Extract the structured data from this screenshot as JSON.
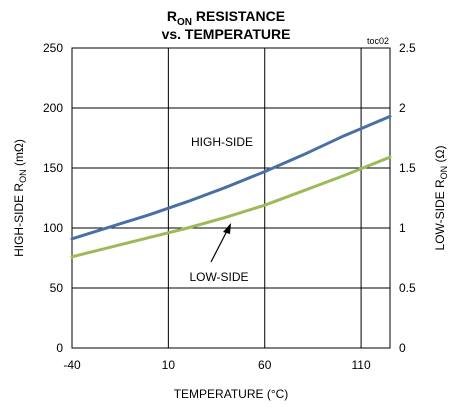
{
  "chart_data": {
    "type": "line",
    "title": {
      "line1_main": "R",
      "line1_sub": "ON",
      "line1_rest": " RESISTANCE",
      "line2": "vs. TEMPERATURE"
    },
    "tag": "toc02",
    "xlabel": "TEMPERATURE (°C)",
    "ylabel_left": {
      "pre": "HIGH-SIDE R",
      "sub": "ON",
      "post": " (mΩ)"
    },
    "ylabel_right": {
      "pre": "LOW-SIDE R",
      "sub": "ON",
      "post": " (Ω)"
    },
    "xlim": [
      -40,
      125
    ],
    "ylim_left": [
      0,
      250
    ],
    "ylim_right": [
      0,
      2.5
    ],
    "x_ticks": [
      "-40",
      "10",
      "60",
      "110"
    ],
    "y_ticks_left": [
      "0",
      "50",
      "100",
      "150",
      "200",
      "250"
    ],
    "y_ticks_right": [
      "0",
      "0.5",
      "1",
      "1.5",
      "2",
      "2.5"
    ],
    "grid": true,
    "series": [
      {
        "name": "HIGH-SIDE",
        "axis": "left",
        "color": "#4a6fa5",
        "x": [
          -40,
          -20,
          0,
          20,
          40,
          60,
          80,
          100,
          125
        ],
        "y": [
          91,
          101,
          111,
          122,
          134,
          147,
          161,
          176,
          193
        ]
      },
      {
        "name": "LOW-SIDE",
        "axis": "right",
        "color": "#9bbb59",
        "x": [
          -40,
          -20,
          0,
          20,
          40,
          60,
          80,
          100,
          125
        ],
        "y": [
          0.76,
          0.84,
          0.92,
          1.0,
          1.09,
          1.19,
          1.31,
          1.43,
          1.59
        ]
      }
    ],
    "annotations": [
      {
        "text": "HIGH-SIDE",
        "target": "HIGH-SIDE"
      },
      {
        "text": "LOW-SIDE",
        "target": "LOW-SIDE",
        "arrow": true
      }
    ]
  }
}
